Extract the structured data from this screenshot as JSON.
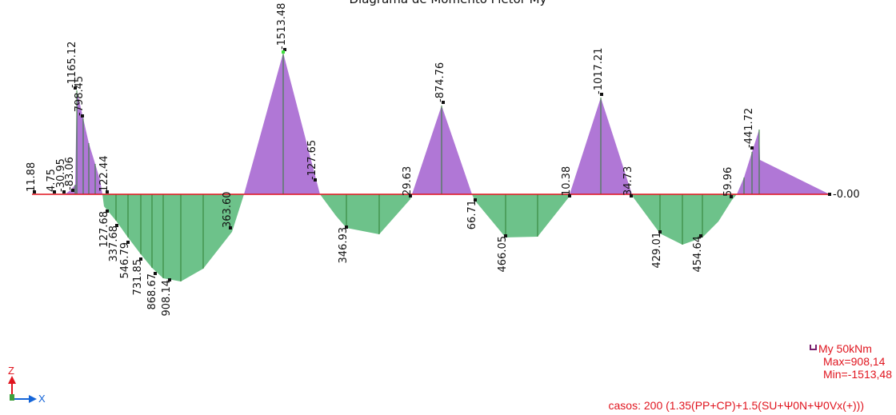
{
  "top_title": "Diagrama de Momento Fletor My",
  "legend": {
    "icon": "moment-diagram-icon",
    "label": "My  50kNm",
    "max": "Max=908,14",
    "min": "Min=-1513,48"
  },
  "cases": "casos: 200 (1.35(PP+CP)+1.5(SU+Ψ0N+Ψ0Vx(+)))",
  "axes": {
    "z": "Z",
    "x": "X",
    "z_color": "#e0141e",
    "x_color": "#1565d8"
  },
  "colors": {
    "negative_fill": "#b077d6",
    "positive_fill": "#6dc28a",
    "baseline": "#e0141e",
    "hatch": "#2e7d32",
    "text": "#e0141e",
    "max_marker": "#3ee03e"
  },
  "values": [
    "11.88",
    "4.75",
    "-30.95",
    "-83.06",
    "-1165.12",
    "-798.45",
    "122.44",
    "127.68",
    "337.68",
    "546.79",
    "731.85",
    "868.67",
    "908.14",
    "363.60",
    "-1513.48",
    "-127.65",
    "346.93",
    "29.63",
    "-874.76",
    "66.71",
    "466.05",
    "10.38",
    "-1017.21",
    "34.73",
    "429.01",
    "454.64",
    "59.96",
    "-441.72",
    "-0.00"
  ]
}
